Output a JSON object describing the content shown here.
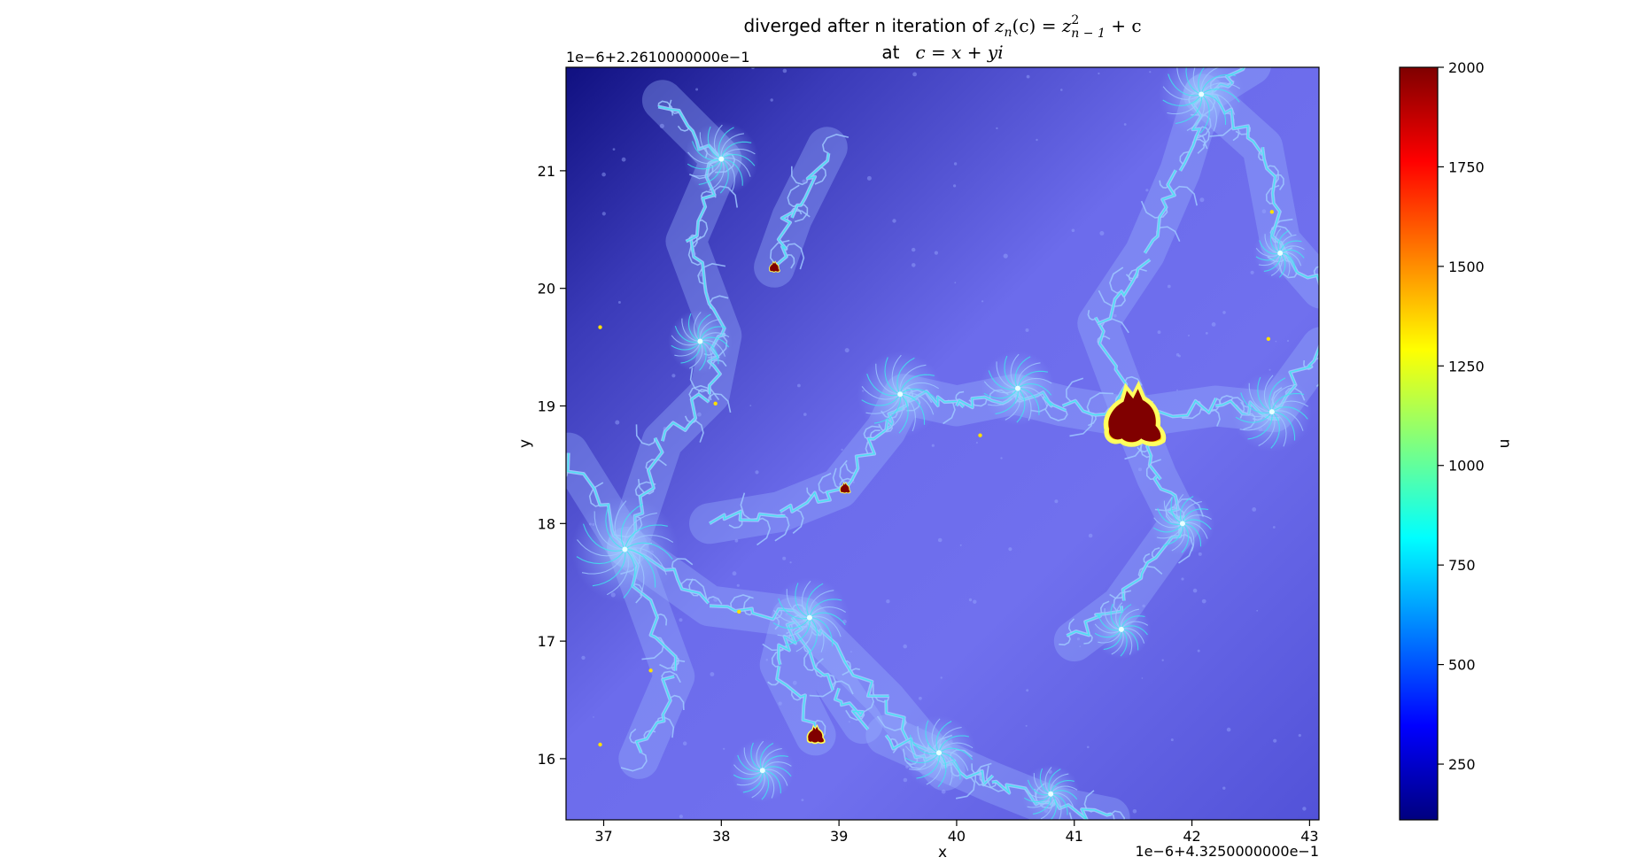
{
  "chart_data": {
    "type": "heatmap",
    "title": {
      "line1_prefix": "diverged after n iteration of ",
      "formula": {
        "lhs_z": "z",
        "lhs_sub": "n",
        "lhs_arg": "(c)",
        "eq": " = ",
        "rhs_z": "z",
        "rhs_sup": "2",
        "rhs_sub": "n − 1",
        "rhs_tail": " + c"
      },
      "line2_prefix": "at",
      "line2_formula": "c = x + yi"
    },
    "xlabel": "x",
    "ylabel": "y",
    "x_offset_label": "1e−6+4.3250000000e−1",
    "y_offset_label": "1e−6+2.2610000000e−1",
    "x_ticks": [
      37,
      38,
      39,
      40,
      41,
      42,
      43
    ],
    "y_ticks": [
      16,
      17,
      18,
      19,
      20,
      21
    ],
    "x_range": [
      36.68,
      43.08
    ],
    "y_range": [
      15.48,
      21.88
    ],
    "colorbar": {
      "label": "n",
      "ticks": [
        250,
        500,
        750,
        1000,
        1250,
        1500,
        1750,
        2000
      ],
      "range": [
        110,
        2000
      ],
      "colormap": [
        "#00007f",
        "#0000ff",
        "#007fff",
        "#00ffff",
        "#7fff7f",
        "#ffff00",
        "#ff7f00",
        "#ff0000",
        "#7f0000"
      ]
    },
    "colors": {
      "background_light": "#7c7cf6",
      "background_dark": "#1a1a8c",
      "filament": "#9fc8ff",
      "filament_core": "#3ee8ee",
      "set_interior": "#800000"
    },
    "features": [
      {
        "label": "large-minibrot",
        "x": 41.5,
        "y": 18.9,
        "n": 2000
      },
      {
        "label": "minibrot",
        "x": 38.8,
        "y": 16.2,
        "n": 2000
      },
      {
        "label": "minibrot",
        "x": 38.45,
        "y": 20.18,
        "n": 2000
      },
      {
        "label": "minibrot",
        "x": 39.05,
        "y": 18.3,
        "n": 2000
      }
    ]
  }
}
